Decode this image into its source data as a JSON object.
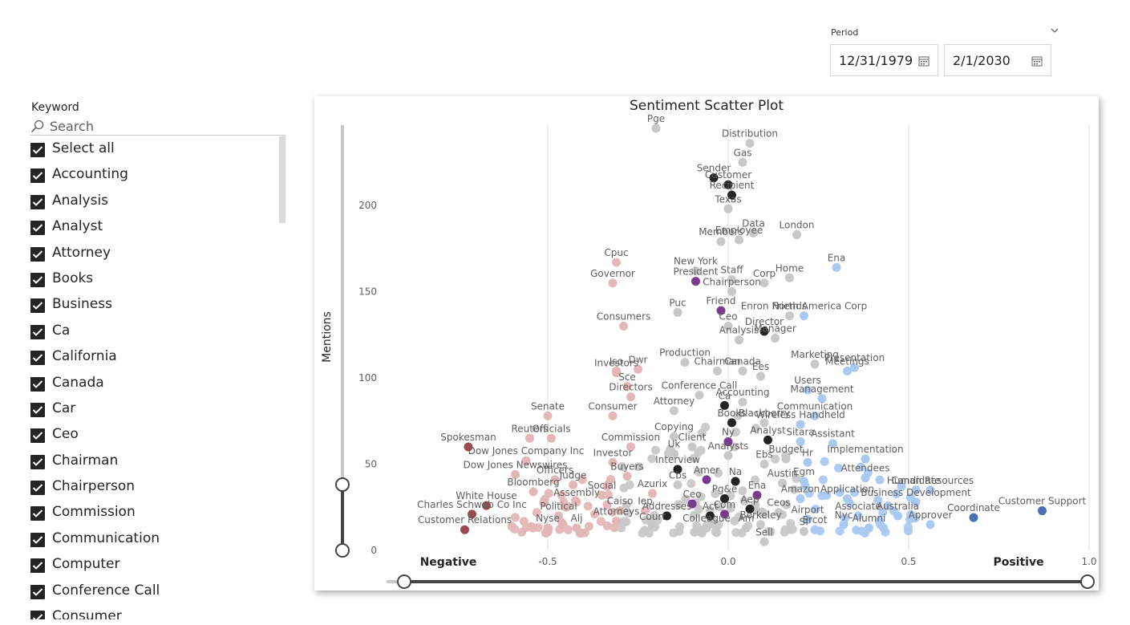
{
  "period": {
    "label": "Period",
    "start": "12/31/1979",
    "end": "2/1/2030",
    "icons": {
      "chevron": "chevron-down-icon",
      "calendar": "calendar-icon"
    }
  },
  "keyword_slicer": {
    "title": "Keyword",
    "search_placeholder": "Search",
    "items": [
      "Select all",
      "Accounting",
      "Analysis",
      "Analyst",
      "Attorney",
      "Books",
      "Business",
      "Ca",
      "California",
      "Canada",
      "Car",
      "Ceo",
      "Chairman",
      "Chairperson",
      "Commission",
      "Communication",
      "Computer",
      "Conference Call",
      "Consumer"
    ],
    "all_checked": true
  },
  "chart_data": {
    "type": "scatter",
    "title": "Sentiment Scatter Plot",
    "ylabel": "Mentions",
    "xlabel_left": "Negative",
    "xlabel_right": "Positive",
    "xlim": [
      -1.0,
      1.0
    ],
    "ylim": [
      0,
      240
    ],
    "x_ticks": [
      "-0.5",
      "0.0",
      "0.5",
      "1.0"
    ],
    "x_tick_values": [
      -0.5,
      0.0,
      0.5,
      1.0
    ],
    "y_ticks": [
      "0",
      "50",
      "100",
      "150",
      "200"
    ],
    "y_tick_values": [
      0,
      50,
      100,
      150,
      200
    ],
    "colors": {
      "dark": "#252423",
      "purple": "#7a3b8f",
      "gray": "#c8c8c8",
      "pink": "#e3b6b7",
      "red": "#9c4a4f",
      "blue": "#a9c8f2",
      "navy": "#4a6fb3"
    },
    "labeled_points": [
      {
        "label": "Pge",
        "x": -0.2,
        "y": 245,
        "c": "gray"
      },
      {
        "label": "Distribution",
        "x": 0.06,
        "y": 236,
        "c": "gray"
      },
      {
        "label": "Gas",
        "x": 0.04,
        "y": 225,
        "c": "gray"
      },
      {
        "label": "Sender",
        "x": -0.04,
        "y": 216,
        "c": "dark"
      },
      {
        "label": "Customer",
        "x": 0.0,
        "y": 212,
        "c": "dark"
      },
      {
        "label": "Recipient",
        "x": 0.01,
        "y": 206,
        "c": "dark"
      },
      {
        "label": "Texas",
        "x": 0.0,
        "y": 198,
        "c": "gray"
      },
      {
        "label": "Data",
        "x": 0.07,
        "y": 184,
        "c": "gray"
      },
      {
        "label": "Members",
        "x": -0.02,
        "y": 179,
        "c": "gray"
      },
      {
        "label": "London",
        "x": 0.19,
        "y": 183,
        "c": "gray"
      },
      {
        "label": "Employee",
        "x": 0.03,
        "y": 180,
        "c": "gray"
      },
      {
        "label": "Ena",
        "x": 0.3,
        "y": 164,
        "c": "blue"
      },
      {
        "label": "Home",
        "x": 0.17,
        "y": 158,
        "c": "gray"
      },
      {
        "label": "Cpuc",
        "x": -0.31,
        "y": 167,
        "c": "pink"
      },
      {
        "label": "New York",
        "x": -0.09,
        "y": 162,
        "c": "gray"
      },
      {
        "label": "Staff",
        "x": 0.01,
        "y": 157,
        "c": "gray"
      },
      {
        "label": "Corp",
        "x": 0.1,
        "y": 155,
        "c": "gray"
      },
      {
        "label": "President",
        "x": -0.09,
        "y": 156,
        "c": "purple"
      },
      {
        "label": "Governor",
        "x": -0.32,
        "y": 155,
        "c": "pink"
      },
      {
        "label": "Chairperson",
        "x": 0.01,
        "y": 150,
        "c": "gray"
      },
      {
        "label": "Friends",
        "x": 0.17,
        "y": 136,
        "c": "gray"
      },
      {
        "label": "Friend",
        "x": -0.02,
        "y": 139,
        "c": "purple"
      },
      {
        "label": "Enron North America Corp",
        "x": 0.21,
        "y": 136,
        "c": "blue"
      },
      {
        "label": "Puc",
        "x": -0.14,
        "y": 138,
        "c": "gray"
      },
      {
        "label": "Ceo",
        "x": 0.0,
        "y": 130,
        "c": "gray"
      },
      {
        "label": "Director",
        "x": 0.1,
        "y": 127,
        "c": "dark"
      },
      {
        "label": "Consumers",
        "x": -0.29,
        "y": 130,
        "c": "pink"
      },
      {
        "label": "Manager",
        "x": 0.13,
        "y": 123,
        "c": "gray"
      },
      {
        "label": "Analysis",
        "x": 0.03,
        "y": 122,
        "c": "gray"
      },
      {
        "label": "Presentation",
        "x": 0.35,
        "y": 106,
        "c": "blue"
      },
      {
        "label": "Iso",
        "x": -0.31,
        "y": 104,
        "c": "pink"
      },
      {
        "label": "Dwr",
        "x": -0.25,
        "y": 105,
        "c": "pink"
      },
      {
        "label": "Production",
        "x": -0.12,
        "y": 109,
        "c": "gray"
      },
      {
        "label": "Canada",
        "x": 0.04,
        "y": 104,
        "c": "gray"
      },
      {
        "label": "Marketing",
        "x": 0.24,
        "y": 108,
        "c": "gray"
      },
      {
        "label": "Meetings",
        "x": 0.33,
        "y": 104,
        "c": "blue"
      },
      {
        "label": "Chairman",
        "x": -0.03,
        "y": 104,
        "c": "gray"
      },
      {
        "label": "Investors",
        "x": -0.31,
        "y": 103,
        "c": "pink"
      },
      {
        "label": "Ees",
        "x": 0.09,
        "y": 101,
        "c": "gray"
      },
      {
        "label": "Sce",
        "x": -0.28,
        "y": 95,
        "c": "pink"
      },
      {
        "label": "Users",
        "x": 0.22,
        "y": 93,
        "c": "blue"
      },
      {
        "label": "Management",
        "x": 0.26,
        "y": 88,
        "c": "blue"
      },
      {
        "label": "Conference Call",
        "x": -0.08,
        "y": 90,
        "c": "gray"
      },
      {
        "label": "Directors",
        "x": -0.27,
        "y": 89,
        "c": "pink"
      },
      {
        "label": "Accounting",
        "x": 0.04,
        "y": 86,
        "c": "gray"
      },
      {
        "label": "Ca",
        "x": -0.01,
        "y": 84,
        "c": "dark"
      },
      {
        "label": "Senate",
        "x": -0.5,
        "y": 78,
        "c": "pink"
      },
      {
        "label": "Communication",
        "x": 0.24,
        "y": 78,
        "c": "blue"
      },
      {
        "label": "Consumer",
        "x": -0.32,
        "y": 78,
        "c": "pink"
      },
      {
        "label": "Attorney",
        "x": -0.15,
        "y": 81,
        "c": "gray"
      },
      {
        "label": "Books",
        "x": 0.01,
        "y": 74,
        "c": "dark"
      },
      {
        "label": "Blackberry",
        "x": 0.1,
        "y": 74,
        "c": "gray"
      },
      {
        "label": "Wireless Handheld",
        "x": 0.2,
        "y": 73,
        "c": "blue"
      },
      {
        "label": "Reuters",
        "x": -0.55,
        "y": 65,
        "c": "pink"
      },
      {
        "label": "Officials",
        "x": -0.49,
        "y": 65,
        "c": "pink"
      },
      {
        "label": "Copying",
        "x": -0.15,
        "y": 66,
        "c": "gray"
      },
      {
        "label": "Ny",
        "x": 0.0,
        "y": 63,
        "c": "purple"
      },
      {
        "label": "Spokesman",
        "x": -0.72,
        "y": 60,
        "c": "red"
      },
      {
        "label": "Sitara",
        "x": 0.2,
        "y": 63,
        "c": "blue"
      },
      {
        "label": "Analyst",
        "x": 0.11,
        "y": 64,
        "c": "dark"
      },
      {
        "label": "Commission",
        "x": -0.27,
        "y": 60,
        "c": "pink"
      },
      {
        "label": "Client",
        "x": -0.1,
        "y": 60,
        "c": "gray"
      },
      {
        "label": "Assistant",
        "x": 0.29,
        "y": 62,
        "c": "blue"
      },
      {
        "label": "Dow Jones Company Inc",
        "x": -0.56,
        "y": 52,
        "c": "pink"
      },
      {
        "label": "Uk",
        "x": -0.15,
        "y": 56,
        "c": "gray"
      },
      {
        "label": "Analysts",
        "x": 0.0,
        "y": 55,
        "c": "gray"
      },
      {
        "label": "Budget",
        "x": 0.16,
        "y": 53,
        "c": "gray"
      },
      {
        "label": "Hr",
        "x": 0.22,
        "y": 51,
        "c": "blue"
      },
      {
        "label": "Implementation",
        "x": 0.38,
        "y": 53,
        "c": "blue"
      },
      {
        "label": "Investor",
        "x": -0.32,
        "y": 51,
        "c": "pink"
      },
      {
        "label": "Ebs",
        "x": 0.1,
        "y": 50,
        "c": "gray"
      },
      {
        "label": "Interview",
        "x": -0.14,
        "y": 47,
        "c": "dark"
      },
      {
        "label": "Dow Jones Newswires",
        "x": -0.59,
        "y": 44,
        "c": "pink"
      },
      {
        "label": "Officers",
        "x": -0.48,
        "y": 41,
        "c": "pink"
      },
      {
        "label": "Buyers",
        "x": -0.28,
        "y": 43,
        "c": "pink"
      },
      {
        "label": "Attendees",
        "x": 0.38,
        "y": 42,
        "c": "blue"
      },
      {
        "label": "Judge",
        "x": -0.43,
        "y": 38,
        "c": "pink"
      },
      {
        "label": "Cbs",
        "x": -0.14,
        "y": 38,
        "c": "gray"
      },
      {
        "label": "Amer",
        "x": -0.06,
        "y": 41,
        "c": "purple"
      },
      {
        "label": "Austin",
        "x": 0.15,
        "y": 39,
        "c": "gray"
      },
      {
        "label": "Egm",
        "x": 0.21,
        "y": 40,
        "c": "blue"
      },
      {
        "label": "Social",
        "x": -0.35,
        "y": 32,
        "c": "pink"
      },
      {
        "label": "Na",
        "x": 0.02,
        "y": 40,
        "c": "dark"
      },
      {
        "label": "Candidate",
        "x": 0.52,
        "y": 35,
        "c": "blue"
      },
      {
        "label": "Human Resources",
        "x": 0.56,
        "y": 35,
        "c": "blue"
      },
      {
        "label": "Bloomberg",
        "x": -0.54,
        "y": 34,
        "c": "pink"
      },
      {
        "label": "Azurix",
        "x": -0.21,
        "y": 33,
        "c": "pink"
      },
      {
        "label": "Ena",
        "x": 0.08,
        "y": 32,
        "c": "purple"
      },
      {
        "label": "Amazon",
        "x": 0.2,
        "y": 30,
        "c": "blue"
      },
      {
        "label": "Application",
        "x": 0.33,
        "y": 30,
        "c": "blue"
      },
      {
        "label": "Business Development",
        "x": 0.52,
        "y": 28,
        "c": "blue"
      },
      {
        "label": "White House",
        "x": -0.67,
        "y": 26,
        "c": "red"
      },
      {
        "label": "Assembly",
        "x": -0.42,
        "y": 28,
        "c": "pink"
      },
      {
        "label": "Ceo",
        "x": -0.1,
        "y": 27,
        "c": "purple"
      },
      {
        "label": "Pg&e",
        "x": -0.01,
        "y": 30,
        "c": "dark"
      },
      {
        "label": "Caiso",
        "x": -0.3,
        "y": 23,
        "c": "pink"
      },
      {
        "label": "Iep",
        "x": -0.23,
        "y": 23,
        "c": "pink"
      },
      {
        "label": "Ceos",
        "x": 0.14,
        "y": 22,
        "c": "gray"
      },
      {
        "label": "Aep",
        "x": 0.06,
        "y": 24,
        "c": "dark"
      },
      {
        "label": "Charles Schwab Co Inc",
        "x": -0.71,
        "y": 21,
        "c": "red"
      },
      {
        "label": "Political",
        "x": -0.47,
        "y": 20,
        "c": "pink"
      },
      {
        "label": "Addresses",
        "x": -0.17,
        "y": 20,
        "c": "dark"
      },
      {
        "label": "Act",
        "x": -0.05,
        "y": 20,
        "c": "dark"
      },
      {
        "label": "Com",
        "x": -0.01,
        "y": 21,
        "c": "purple"
      },
      {
        "label": "Airport",
        "x": 0.22,
        "y": 18,
        "c": "blue"
      },
      {
        "label": "Associate",
        "x": 0.36,
        "y": 20,
        "c": "blue"
      },
      {
        "label": "Australia",
        "x": 0.47,
        "y": 20,
        "c": "blue"
      },
      {
        "label": "Coordinate",
        "x": 0.68,
        "y": 19,
        "c": "navy"
      },
      {
        "label": "Customer Support",
        "x": 0.87,
        "y": 23,
        "c": "navy"
      },
      {
        "label": "Attorneys",
        "x": -0.31,
        "y": 17,
        "c": "pink"
      },
      {
        "label": "Court",
        "x": -0.21,
        "y": 14,
        "c": "gray"
      },
      {
        "label": "Berkeley",
        "x": 0.09,
        "y": 15,
        "c": "gray"
      },
      {
        "label": "Nyse",
        "x": -0.5,
        "y": 13,
        "c": "pink"
      },
      {
        "label": "Alj",
        "x": -0.42,
        "y": 13,
        "c": "pink"
      },
      {
        "label": "Colleague",
        "x": -0.06,
        "y": 13,
        "c": "gray"
      },
      {
        "label": "Am",
        "x": 0.05,
        "y": 13,
        "c": "gray"
      },
      {
        "label": "Nyc",
        "x": 0.32,
        "y": 15,
        "c": "blue"
      },
      {
        "label": "Alumni",
        "x": 0.39,
        "y": 13,
        "c": "blue"
      },
      {
        "label": "Approver",
        "x": 0.56,
        "y": 15,
        "c": "blue"
      },
      {
        "label": "Customer Relations",
        "x": -0.73,
        "y": 12,
        "c": "red"
      },
      {
        "label": "Ercot",
        "x": 0.24,
        "y": 12,
        "c": "blue"
      },
      {
        "label": "Sf",
        "x": 0.21,
        "y": 11,
        "c": "gray"
      },
      {
        "label": "Sell",
        "x": 0.1,
        "y": 5,
        "c": "gray"
      }
    ],
    "series_colors_note": ""
  }
}
